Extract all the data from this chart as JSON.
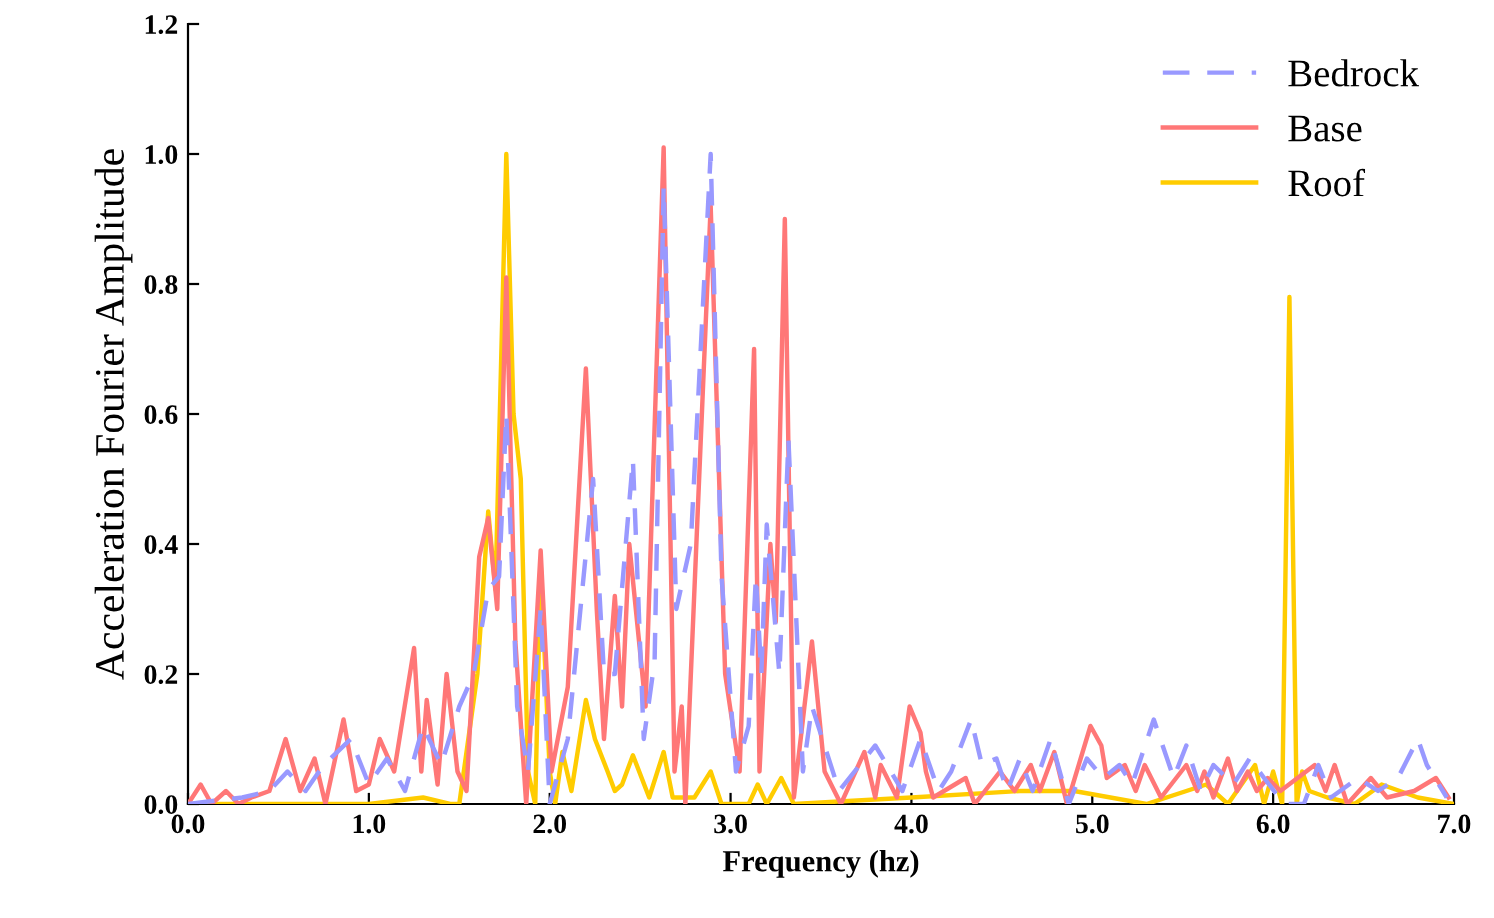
{
  "chart_data": {
    "type": "line",
    "xlabel": "Frequency (hz)",
    "ylabel": "Acceleration Fourier Amplitude",
    "xlim": [
      0,
      7
    ],
    "ylim": [
      0,
      1.2
    ],
    "xticks": [
      {
        "value": 0,
        "label": "0.0"
      },
      {
        "value": 1,
        "label": "1.0"
      },
      {
        "value": 2,
        "label": "2.0"
      },
      {
        "value": 3,
        "label": "3.0"
      },
      {
        "value": 4,
        "label": "4.0"
      },
      {
        "value": 5,
        "label": "5.0"
      },
      {
        "value": 6,
        "label": "6.0"
      },
      {
        "value": 7,
        "label": "7.0"
      }
    ],
    "yticks": [
      {
        "value": 0,
        "label": "0.0"
      },
      {
        "value": 0.2,
        "label": "0.2"
      },
      {
        "value": 0.4,
        "label": "0.4"
      },
      {
        "value": 0.6,
        "label": "0.6"
      },
      {
        "value": 0.8,
        "label": "0.8"
      },
      {
        "value": 1.0,
        "label": "1.0"
      },
      {
        "value": 1.2,
        "label": "1.2"
      }
    ],
    "grid": false,
    "legend": "top right",
    "marker": "none",
    "series": [
      {
        "name": "Bedrock",
        "color": "#9999ff",
        "line_style": "dashed",
        "x": [
          0.0,
          0.3,
          0.45,
          0.55,
          0.65,
          0.75,
          0.9,
          1.0,
          1.1,
          1.2,
          1.3,
          1.4,
          1.5,
          1.58,
          1.66,
          1.72,
          1.76,
          1.82,
          1.88,
          1.95,
          2.0,
          2.1,
          2.24,
          2.3,
          2.36,
          2.46,
          2.52,
          2.58,
          2.63,
          2.7,
          2.78,
          2.89,
          2.95,
          3.03,
          3.1,
          3.14,
          3.17,
          3.2,
          3.27,
          3.32,
          3.4,
          3.45,
          3.6,
          3.8,
          3.95,
          4.05,
          4.15,
          4.22,
          4.33,
          4.39,
          4.47,
          4.53,
          4.6,
          4.67,
          4.77,
          4.87,
          4.97,
          5.06,
          5.15,
          5.22,
          5.34,
          5.45,
          5.52,
          5.6,
          5.67,
          5.78,
          5.87,
          5.95,
          6.06,
          6.17,
          6.25,
          6.32,
          6.47,
          6.58,
          6.69,
          6.8,
          6.85,
          6.96
        ],
        "values": [
          0.0,
          0.01,
          0.02,
          0.05,
          0.02,
          0.06,
          0.1,
          0.03,
          0.07,
          0.02,
          0.12,
          0.06,
          0.15,
          0.2,
          0.33,
          0.35,
          0.6,
          0.15,
          0.05,
          0.3,
          0.0,
          0.1,
          0.5,
          0.2,
          0.2,
          0.53,
          0.1,
          0.22,
          0.95,
          0.3,
          0.4,
          1.0,
          0.35,
          0.05,
          0.12,
          0.35,
          0.2,
          0.43,
          0.2,
          0.56,
          0.05,
          0.15,
          0.02,
          0.09,
          0.02,
          0.1,
          0.02,
          0.05,
          0.13,
          0.06,
          0.07,
          0.02,
          0.07,
          0.02,
          0.1,
          0.0,
          0.07,
          0.04,
          0.06,
          0.03,
          0.13,
          0.04,
          0.09,
          0.02,
          0.06,
          0.03,
          0.07,
          0.04,
          0.0,
          0.0,
          0.06,
          0.01,
          0.04,
          0.02,
          0.04,
          0.1,
          0.06,
          0.01
        ]
      },
      {
        "name": "Base",
        "color": "#ff7777",
        "line_style": "solid",
        "x": [
          0.0,
          0.07,
          0.13,
          0.21,
          0.28,
          0.35,
          0.45,
          0.54,
          0.62,
          0.7,
          0.76,
          0.86,
          0.93,
          1.0,
          1.06,
          1.14,
          1.25,
          1.29,
          1.32,
          1.38,
          1.43,
          1.49,
          1.54,
          1.61,
          1.66,
          1.71,
          1.76,
          1.81,
          1.87,
          1.95,
          2.01,
          2.1,
          2.2,
          2.26,
          2.3,
          2.36,
          2.4,
          2.44,
          2.53,
          2.63,
          2.69,
          2.73,
          2.75,
          2.89,
          2.97,
          3.05,
          3.13,
          3.16,
          3.22,
          3.25,
          3.3,
          3.35,
          3.45,
          3.52,
          3.61,
          3.74,
          3.8,
          3.83,
          3.92,
          3.99,
          4.05,
          4.08,
          4.12,
          4.3,
          4.35,
          4.49,
          4.57,
          4.66,
          4.71,
          4.79,
          4.86,
          4.99,
          5.05,
          5.08,
          5.18,
          5.24,
          5.29,
          5.38,
          5.52,
          5.58,
          5.62,
          5.67,
          5.75,
          5.8,
          5.86,
          5.91,
          5.97,
          6.04,
          6.23,
          6.29,
          6.34,
          6.41,
          6.54,
          6.63,
          6.78,
          6.9,
          6.97
        ],
        "values": [
          0.0,
          0.03,
          0.0,
          0.02,
          0.0,
          0.01,
          0.02,
          0.1,
          0.02,
          0.07,
          0.0,
          0.13,
          0.02,
          0.03,
          0.1,
          0.05,
          0.24,
          0.05,
          0.16,
          0.03,
          0.2,
          0.05,
          0.02,
          0.38,
          0.44,
          0.3,
          0.81,
          0.25,
          0.0,
          0.39,
          0.05,
          0.18,
          0.67,
          0.3,
          0.1,
          0.32,
          0.15,
          0.4,
          0.15,
          1.01,
          0.05,
          0.15,
          0.0,
          0.92,
          0.2,
          0.05,
          0.7,
          0.05,
          0.4,
          0.28,
          0.9,
          0.01,
          0.25,
          0.05,
          0.0,
          0.08,
          0.01,
          0.06,
          0.01,
          0.15,
          0.11,
          0.05,
          0.01,
          0.04,
          0.0,
          0.05,
          0.02,
          0.06,
          0.02,
          0.08,
          0.0,
          0.12,
          0.09,
          0.04,
          0.06,
          0.02,
          0.06,
          0.01,
          0.06,
          0.02,
          0.05,
          0.01,
          0.07,
          0.02,
          0.05,
          0.02,
          0.04,
          0.02,
          0.06,
          0.02,
          0.06,
          0.0,
          0.04,
          0.01,
          0.02,
          0.04,
          0.01
        ]
      },
      {
        "name": "Roof",
        "color": "#ffcc00",
        "line_style": "solid",
        "x": [
          0.0,
          1.0,
          1.3,
          1.45,
          1.5,
          1.6,
          1.66,
          1.7,
          1.76,
          1.8,
          1.84,
          1.88,
          1.92,
          1.95,
          2.0,
          2.03,
          2.07,
          2.12,
          2.2,
          2.25,
          2.32,
          2.36,
          2.4,
          2.46,
          2.55,
          2.63,
          2.68,
          2.8,
          2.89,
          2.95,
          3.1,
          3.15,
          3.2,
          3.28,
          3.35,
          4.0,
          4.6,
          4.9,
          5.3,
          5.63,
          5.75,
          5.9,
          5.95,
          6.0,
          6.05,
          6.09,
          6.13,
          6.16,
          6.2,
          6.3,
          6.45,
          6.6,
          6.8,
          7.0
        ],
        "values": [
          0.0,
          0.0,
          0.01,
          0.0,
          0.0,
          0.2,
          0.45,
          0.33,
          1.0,
          0.6,
          0.5,
          0.05,
          0.0,
          0.37,
          0.05,
          0.0,
          0.08,
          0.02,
          0.16,
          0.1,
          0.05,
          0.02,
          0.03,
          0.075,
          0.01,
          0.08,
          0.01,
          0.01,
          0.05,
          0.0,
          0.0,
          0.03,
          0.0,
          0.04,
          0.0,
          0.01,
          0.02,
          0.02,
          0.0,
          0.03,
          0.0,
          0.06,
          0.0,
          0.05,
          0.0,
          0.78,
          0.0,
          0.05,
          0.02,
          0.01,
          0.0,
          0.03,
          0.01,
          0.0
        ]
      }
    ]
  }
}
